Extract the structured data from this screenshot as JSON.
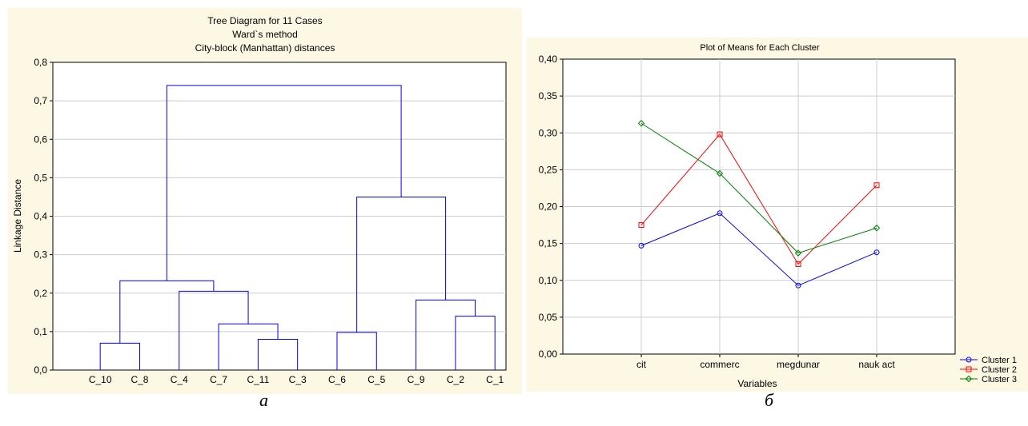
{
  "chart_data": [
    {
      "type": "dendrogram",
      "title": "Tree Diagram for 11 Cases",
      "subtitle_1": "Ward`s method",
      "subtitle_2": "City-block (Manhattan) distances",
      "ylabel": "Linkage Distance",
      "ylim": [
        0,
        0.8
      ],
      "yticks": [
        "0,0",
        "0,1",
        "0,2",
        "0,3",
        "0,4",
        "0,5",
        "0,6",
        "0,7",
        "0,8"
      ],
      "leaves": [
        "C_10",
        "C_8",
        "C_4",
        "C_7",
        "C_11",
        "C_3",
        "C_6",
        "C_5",
        "C_9",
        "C_2",
        "C_1"
      ],
      "merges": [
        {
          "a": "C_10",
          "b": "C_8",
          "height": 0.07
        },
        {
          "a": "C_11",
          "b": "C_3",
          "height": 0.08
        },
        {
          "a": "C_6",
          "b": "C_5",
          "height": 0.098
        },
        {
          "a": "C_2",
          "b": "C_1",
          "height": 0.14
        },
        {
          "a": "C_7",
          "b": "(C_11,C_3)",
          "height": 0.12
        },
        {
          "a": "C_9",
          "b": "(C_2,C_1)",
          "height": 0.182
        },
        {
          "a": "C_4",
          "b": "(C_7,C_11,C_3)",
          "height": 0.205
        },
        {
          "a": "(C_10,C_8)",
          "b": "(C_4,C_7,C_11,C_3)",
          "height": 0.232
        },
        {
          "a": "(C_6,C_5)",
          "b": "(C_9,C_2,C_1)",
          "height": 0.45
        },
        {
          "a": "left cluster",
          "b": "right cluster",
          "height": 0.74
        }
      ]
    },
    {
      "type": "line",
      "title": "Plot of Means for Each Cluster",
      "xlabel": "Variables",
      "ylim": [
        0,
        0.4
      ],
      "yticks": [
        "0,00",
        "0,05",
        "0,10",
        "0,15",
        "0,20",
        "0,25",
        "0,30",
        "0,35",
        "0,40"
      ],
      "categories": [
        "cit",
        "commerc",
        "megdunar",
        "nauk act"
      ],
      "series": [
        {
          "name": "Cluster  1",
          "color": "#0000ff",
          "marker": "circle",
          "values": [
            0.147,
            0.191,
            0.093,
            0.138
          ]
        },
        {
          "name": "Cluster  2",
          "color": "#ff0000",
          "marker": "square",
          "values": [
            0.175,
            0.298,
            0.122,
            0.229
          ]
        },
        {
          "name": "Cluster  3",
          "color": "#008000",
          "marker": "diamond",
          "values": [
            0.313,
            0.245,
            0.137,
            0.171
          ]
        }
      ],
      "legend": "bottom-right"
    }
  ],
  "captions": {
    "left": "а",
    "right": "б"
  },
  "colors": {
    "panel_bg": "#fdf8e4",
    "dendro_line": "#0000ff",
    "grid": "#cccccc"
  }
}
